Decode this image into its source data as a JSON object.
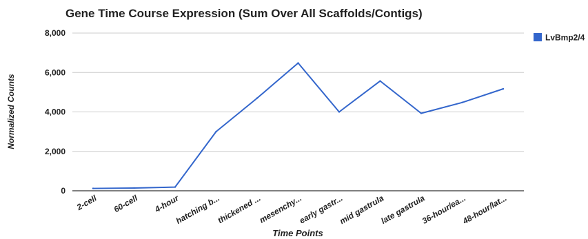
{
  "chart_data": {
    "type": "line",
    "title": "Gene Time Course Expression (Sum Over All Scaffolds/Contigs)",
    "xlabel": "Time Points",
    "ylabel": "Normalized Counts",
    "categories": [
      "2-cell",
      "60-cell",
      "4-hour",
      "hatching b...",
      "thickened ...",
      "mesenchy...",
      "early gastr...",
      "mid gastrula",
      "late gastrula",
      "36-hour/ea...",
      "48-hour/lat..."
    ],
    "series": [
      {
        "name": "LvBmp2/4",
        "color": "#3366cc",
        "values": [
          120,
          140,
          190,
          3000,
          4700,
          6480,
          4000,
          5570,
          3930,
          4480,
          5170
        ]
      }
    ],
    "ylim": [
      0,
      8000
    ],
    "yticks": [
      0,
      2000,
      4000,
      6000,
      8000
    ],
    "ytick_labels": [
      "0",
      "2,000",
      "4,000",
      "6,000",
      "8,000"
    ],
    "grid": true,
    "legend_position": "right"
  }
}
